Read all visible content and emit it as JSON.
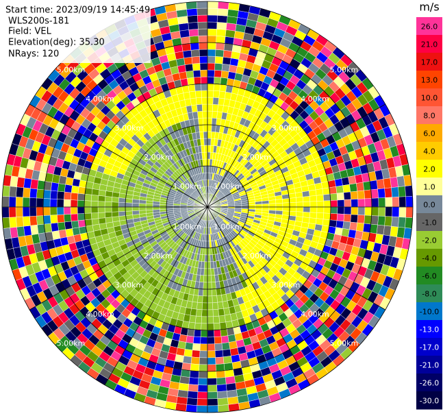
{
  "header": {
    "start_time": "Start time: 2023/09/19 14:45:49",
    "instrument": "WLS200s-181",
    "field": "Field: VEL",
    "elevation": "Elevation(deg): 35.30",
    "nrays": "NRays: 120"
  },
  "range_rings": [
    "1.00km",
    "2.00km",
    "3.00km",
    "4.00km",
    "5.00km"
  ],
  "colorbar": {
    "unit": "m/s",
    "ticks": [
      {
        "value": 26,
        "label": "26.0"
      },
      {
        "value": 21,
        "label": "21.0"
      },
      {
        "value": 17,
        "label": "17.0"
      },
      {
        "value": 13,
        "label": "13.0"
      },
      {
        "value": 10,
        "label": "10.0"
      },
      {
        "value": 8,
        "label": "8.0"
      },
      {
        "value": 6,
        "label": "6.0"
      },
      {
        "value": 4,
        "label": "4.0"
      },
      {
        "value": 2,
        "label": "2.0"
      },
      {
        "value": 1,
        "label": "1.0"
      },
      {
        "value": 0,
        "label": "0.0"
      },
      {
        "value": -1,
        "label": "-1.0"
      },
      {
        "value": -2,
        "label": "-2.0"
      },
      {
        "value": -4,
        "label": "-4.0"
      },
      {
        "value": -6,
        "label": "-6.0"
      },
      {
        "value": -8,
        "label": "-8.0"
      },
      {
        "value": -10,
        "label": "-10.0"
      },
      {
        "value": -13,
        "label": "-13.0"
      },
      {
        "value": -17,
        "label": "-17.0"
      },
      {
        "value": -21,
        "label": "-21.0"
      },
      {
        "value": -26,
        "label": "-26.0"
      },
      {
        "value": -30,
        "label": "-30.0"
      }
    ],
    "colors": [
      "#ff3399",
      "#ff0044",
      "#ee1111",
      "#ff4400",
      "#ff5533",
      "#ff7766",
      "#ffaa00",
      "#ffcc00",
      "#ffff00",
      "#ffff99",
      "#778899",
      "#666666",
      "#99cc33",
      "#669900",
      "#228b22",
      "#2e8b57",
      "#0077cc",
      "#0000ff",
      "#0000cc",
      "#000099",
      "#000066",
      "#000044"
    ]
  }
}
